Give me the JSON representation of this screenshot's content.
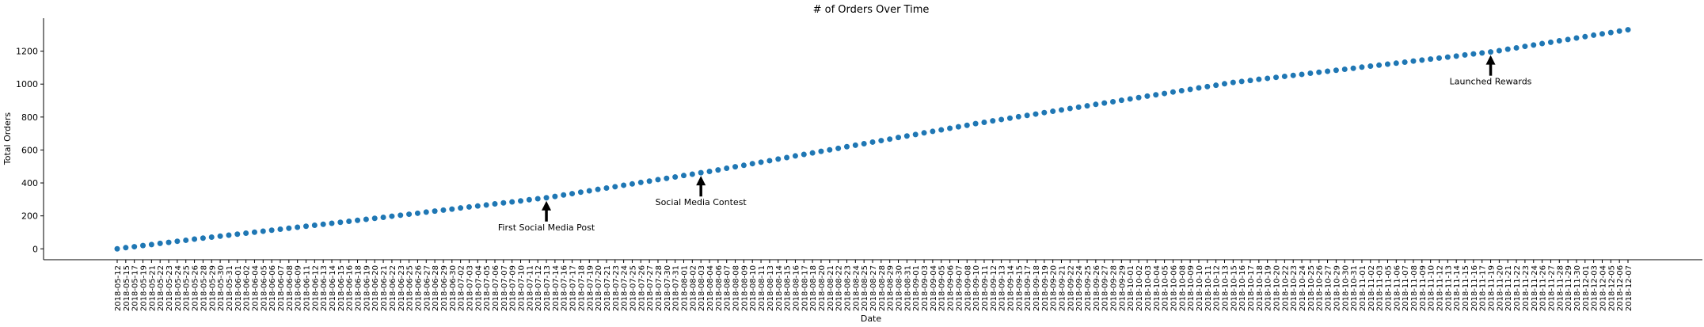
{
  "chart_data": {
    "type": "scatter",
    "title": "# of Orders Over Time",
    "x_label": "Date",
    "y_label": "Total Orders",
    "categories": [
      "2018-05-12",
      "2018-05-15",
      "2018-05-17",
      "2018-05-19",
      "2018-05-21",
      "2018-05-22",
      "2018-05-23",
      "2018-05-24",
      "2018-05-25",
      "2018-05-26",
      "2018-05-28",
      "2018-05-29",
      "2018-05-30",
      "2018-05-31",
      "2018-06-01",
      "2018-06-02",
      "2018-06-04",
      "2018-06-05",
      "2018-06-06",
      "2018-06-07",
      "2018-06-08",
      "2018-06-09",
      "2018-06-11",
      "2018-06-12",
      "2018-06-13",
      "2018-06-14",
      "2018-06-15",
      "2018-06-16",
      "2018-06-18",
      "2018-06-19",
      "2018-06-20",
      "2018-06-21",
      "2018-06-22",
      "2018-06-23",
      "2018-06-25",
      "2018-06-26",
      "2018-06-27",
      "2018-06-28",
      "2018-06-29",
      "2018-06-30",
      "2018-07-02",
      "2018-07-03",
      "2018-07-04",
      "2018-07-05",
      "2018-07-06",
      "2018-07-07",
      "2018-07-09",
      "2018-07-10",
      "2018-07-11",
      "2018-07-12",
      "2018-07-13",
      "2018-07-14",
      "2018-07-16",
      "2018-07-17",
      "2018-07-18",
      "2018-07-19",
      "2018-07-20",
      "2018-07-21",
      "2018-07-23",
      "2018-07-24",
      "2018-07-25",
      "2018-07-26",
      "2018-07-27",
      "2018-07-28",
      "2018-07-30",
      "2018-07-31",
      "2018-08-01",
      "2018-08-02",
      "2018-08-03",
      "2018-08-04",
      "2018-08-06",
      "2018-08-07",
      "2018-08-08",
      "2018-08-09",
      "2018-08-10",
      "2018-08-11",
      "2018-08-13",
      "2018-08-14",
      "2018-08-15",
      "2018-08-16",
      "2018-08-17",
      "2018-08-18",
      "2018-08-20",
      "2018-08-21",
      "2018-08-22",
      "2018-08-23",
      "2018-08-24",
      "2018-08-25",
      "2018-08-27",
      "2018-08-28",
      "2018-08-29",
      "2018-08-30",
      "2018-08-31",
      "2018-09-01",
      "2018-09-03",
      "2018-09-04",
      "2018-09-05",
      "2018-09-06",
      "2018-09-07",
      "2018-09-08",
      "2018-09-10",
      "2018-09-11",
      "2018-09-12",
      "2018-09-13",
      "2018-09-14",
      "2018-09-15",
      "2018-09-17",
      "2018-09-18",
      "2018-09-19",
      "2018-09-20",
      "2018-09-21",
      "2018-09-22",
      "2018-09-24",
      "2018-09-25",
      "2018-09-26",
      "2018-09-27",
      "2018-09-28",
      "2018-09-29",
      "2018-10-01",
      "2018-10-02",
      "2018-10-03",
      "2018-10-04",
      "2018-10-05",
      "2018-10-06",
      "2018-10-08",
      "2018-10-09",
      "2018-10-10",
      "2018-10-11",
      "2018-10-12",
      "2018-10-13",
      "2018-10-15",
      "2018-10-16",
      "2018-10-17",
      "2018-10-18",
      "2018-10-19",
      "2018-10-20",
      "2018-10-22",
      "2018-10-23",
      "2018-10-24",
      "2018-10-25",
      "2018-10-26",
      "2018-10-27",
      "2018-10-29",
      "2018-10-30",
      "2018-10-31",
      "2018-11-01",
      "2018-11-02",
      "2018-11-03",
      "2018-11-05",
      "2018-11-06",
      "2018-11-07",
      "2018-11-08",
      "2018-11-09",
      "2018-11-10",
      "2018-11-12",
      "2018-11-13",
      "2018-11-14",
      "2018-11-15",
      "2018-11-16",
      "2018-11-17",
      "2018-11-19",
      "2018-11-20",
      "2018-11-21",
      "2018-11-22",
      "2018-11-23",
      "2018-11-24",
      "2018-11-26",
      "2018-11-27",
      "2018-11-28",
      "2018-11-29",
      "2018-11-30",
      "2018-12-01",
      "2018-12-03",
      "2018-12-04",
      "2018-12-05",
      "2018-12-06",
      "2018-12-07"
    ],
    "values": [
      0,
      7,
      13,
      20,
      26,
      33,
      39,
      46,
      52,
      59,
      65,
      71,
      77,
      83,
      89,
      95,
      101,
      107,
      113,
      119,
      125,
      131,
      137,
      143,
      149,
      155,
      161,
      167,
      173,
      179,
      185,
      191,
      198,
      204,
      210,
      216,
      223,
      229,
      235,
      241,
      248,
      254,
      260,
      266,
      273,
      279,
      285,
      291,
      298,
      304,
      310,
      318,
      327,
      335,
      344,
      352,
      361,
      369,
      377,
      386,
      394,
      403,
      411,
      420,
      428,
      436,
      445,
      453,
      462,
      470,
      479,
      489,
      498,
      507,
      517,
      526,
      535,
      545,
      554,
      564,
      573,
      582,
      592,
      601,
      610,
      620,
      629,
      638,
      648,
      657,
      666,
      676,
      685,
      694,
      704,
      713,
      722,
      732,
      741,
      750,
      760,
      768,
      777,
      785,
      793,
      802,
      810,
      818,
      827,
      835,
      843,
      852,
      860,
      868,
      877,
      885,
      893,
      902,
      910,
      918,
      927,
      935,
      943,
      952,
      960,
      968,
      977,
      985,
      993,
      1002,
      1010,
      1016,
      1022,
      1029,
      1035,
      1041,
      1047,
      1053,
      1059,
      1066,
      1072,
      1078,
      1084,
      1090,
      1096,
      1103,
      1109,
      1115,
      1121,
      1127,
      1133,
      1140,
      1146,
      1152,
      1158,
      1164,
      1170,
      1177,
      1183,
      1189,
      1195,
      1203,
      1212,
      1220,
      1229,
      1237,
      1246,
      1254,
      1263,
      1271,
      1280,
      1288,
      1297,
      1305,
      1313,
      1322,
      1330
    ],
    "color": "#1f77b4",
    "ylim": [
      -66,
      1400
    ],
    "yticks": [
      0,
      200,
      400,
      600,
      800,
      1000,
      1200
    ],
    "annotations": [
      {
        "text": "First Social Media Post",
        "x": "2018-07-13"
      },
      {
        "text": "Social Media Contest",
        "x": "2018-08-03"
      },
      {
        "text": "Launched Rewards",
        "x": "2018-11-19"
      }
    ]
  }
}
